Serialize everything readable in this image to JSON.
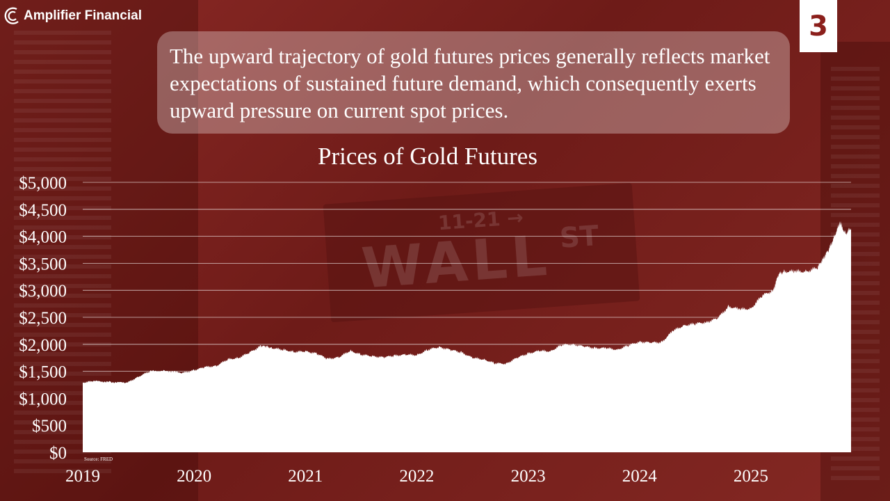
{
  "brand": {
    "name": "Amplifier Financial"
  },
  "slide_number": "3",
  "callout": "The upward trajectory of gold futures prices generally reflects market expectations of sustained future demand, which consequently exerts upward pressure on current spot prices.",
  "source": "Source: FRED",
  "colors": {
    "background": "#7a1f1c",
    "area": "#ffffff",
    "grid": "#ffffff",
    "accent": "#8b1f1b"
  },
  "chart_data": {
    "type": "area",
    "title": "Prices of Gold Futures",
    "xlabel": "",
    "ylabel": "",
    "ylim": [
      0,
      5000
    ],
    "xlim": [
      2019.0,
      2025.9
    ],
    "grid": true,
    "legend": "none",
    "ytick_labels": [
      "$0",
      "$500",
      "$1,000",
      "$1,500",
      "$2,000",
      "$2,500",
      "$3,000",
      "$3,500",
      "$4,000",
      "$4,500",
      "$5,000"
    ],
    "ytick_values": [
      0,
      500,
      1000,
      1500,
      2000,
      2500,
      3000,
      3500,
      4000,
      4500,
      5000
    ],
    "xtick_labels": [
      "2019",
      "2020",
      "2021",
      "2022",
      "2023",
      "2024",
      "2025"
    ],
    "xtick_values": [
      2019,
      2020,
      2021,
      2022,
      2023,
      2024,
      2025
    ],
    "series": [
      {
        "x": [
          2019.0,
          2019.1,
          2019.25,
          2019.4,
          2019.5,
          2019.6,
          2019.75,
          2019.9,
          2020.0,
          2020.1,
          2020.2,
          2020.3,
          2020.4,
          2020.5,
          2020.6,
          2020.65,
          2020.7,
          2020.8,
          2020.9,
          2021.0,
          2021.1,
          2021.2,
          2021.3,
          2021.4,
          2021.5,
          2021.6,
          2021.7,
          2021.8,
          2021.9,
          2022.0,
          2022.1,
          2022.2,
          2022.3,
          2022.4,
          2022.5,
          2022.6,
          2022.7,
          2022.8,
          2022.9,
          2023.0,
          2023.1,
          2023.2,
          2023.3,
          2023.4,
          2023.5,
          2023.6,
          2023.7,
          2023.8,
          2023.9,
          2024.0,
          2024.1,
          2024.2,
          2024.3,
          2024.4,
          2024.5,
          2024.6,
          2024.7,
          2024.8,
          2024.9,
          2025.0,
          2025.1,
          2025.2,
          2025.25,
          2025.3,
          2025.4,
          2025.5,
          2025.6,
          2025.65,
          2025.7,
          2025.75,
          2025.8,
          2025.85,
          2025.9
        ],
        "y": [
          1290,
          1320,
          1300,
          1290,
          1400,
          1500,
          1510,
          1470,
          1520,
          1580,
          1600,
          1720,
          1750,
          1850,
          1970,
          1960,
          1930,
          1900,
          1860,
          1870,
          1830,
          1730,
          1760,
          1880,
          1810,
          1780,
          1760,
          1790,
          1810,
          1800,
          1900,
          1950,
          1900,
          1850,
          1750,
          1720,
          1650,
          1640,
          1750,
          1830,
          1880,
          1870,
          1990,
          2000,
          1960,
          1930,
          1930,
          1900,
          1980,
          2050,
          2030,
          2040,
          2250,
          2350,
          2380,
          2410,
          2480,
          2700,
          2650,
          2660,
          2900,
          3000,
          3300,
          3350,
          3350,
          3350,
          3420,
          3600,
          3750,
          4000,
          4250,
          4050,
          4150
        ]
      }
    ]
  }
}
